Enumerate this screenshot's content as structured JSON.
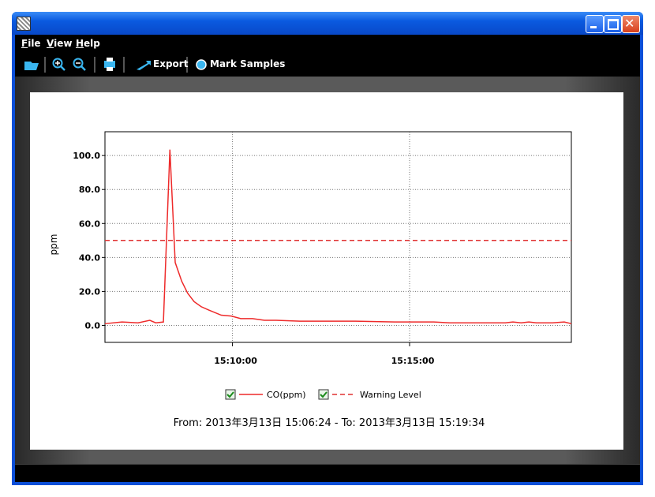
{
  "window": {
    "menu": [
      "File",
      "View",
      "Help"
    ],
    "toolbar": [
      "Export",
      "Mark Samples"
    ]
  },
  "chart_data": {
    "type": "line",
    "y_label": "ppm",
    "xlim": [
      "15:06:24",
      "15:19:34"
    ],
    "xticks": [
      "15:10:00",
      "15:15:00"
    ],
    "ylim": [
      -10,
      114
    ],
    "yticks": [
      {
        "value": 0,
        "label": "0.0"
      },
      {
        "value": 20,
        "label": "20.0"
      },
      {
        "value": 40,
        "label": "40.0"
      },
      {
        "value": 60,
        "label": "60.0"
      },
      {
        "value": 80,
        "label": "80.0"
      },
      {
        "value": 100,
        "label": "100.0"
      }
    ],
    "grid": true,
    "series": [
      {
        "name": "CO(ppm)",
        "color": "#ee2a2a",
        "dash": false,
        "x": [
          "15:06:24",
          "15:06:53",
          "15:07:20",
          "15:07:40",
          "15:07:50",
          "15:08:03",
          "15:08:14",
          "15:08:23",
          "15:08:34",
          "15:08:44",
          "15:08:55",
          "15:09:07",
          "15:09:20",
          "15:09:41",
          "15:09:58",
          "15:10:14",
          "15:10:34",
          "15:10:54",
          "15:11:14",
          "15:11:54",
          "15:12:21",
          "15:13:28",
          "15:14:35",
          "15:15:41",
          "15:16:08",
          "15:17:42",
          "15:17:55",
          "15:18:09",
          "15:18:22",
          "15:18:35",
          "15:19:02",
          "15:19:22",
          "15:19:34"
        ],
        "values": [
          1,
          2,
          1.5,
          3,
          1.5,
          2,
          103.5,
          37,
          26,
          19,
          14,
          11,
          9,
          6,
          5.5,
          4,
          4,
          3,
          3,
          2.5,
          2.5,
          2.5,
          2,
          2,
          1.5,
          1.5,
          2,
          1.5,
          2,
          1.5,
          1.5,
          2,
          1
        ]
      },
      {
        "name": "Warning Level",
        "color": "#e03030",
        "dash": true,
        "x": [
          "15:06:24",
          "15:19:34"
        ],
        "values": [
          50,
          50
        ]
      }
    ],
    "footer": "From: 2013年3月13日 15:06:24  -  To: 2013年3月13日 15:19:34"
  }
}
